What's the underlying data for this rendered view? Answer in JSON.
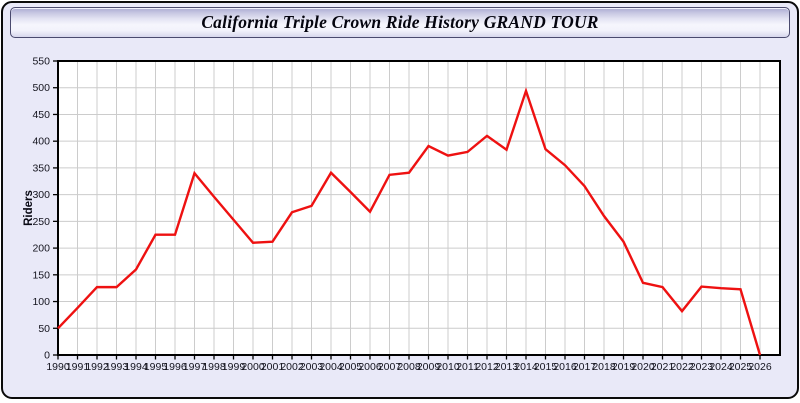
{
  "window": {
    "background_color": "#e9e9f8",
    "border_color": "#0a0a0a"
  },
  "header": {
    "title": "California Triple Crown Ride History GRAND TOUR"
  },
  "chart_data": {
    "type": "line",
    "title": "California Triple Crown Ride History GRAND TOUR",
    "xlabel": "",
    "ylabel": "Riders",
    "x": [
      1990,
      1991,
      1992,
      1993,
      1994,
      1995,
      1996,
      1997,
      1998,
      1999,
      2000,
      2001,
      2002,
      2003,
      2004,
      2005,
      2006,
      2007,
      2008,
      2009,
      2010,
      2011,
      2012,
      2013,
      2014,
      2015,
      2016,
      2017,
      2018,
      2019,
      2020,
      2021,
      2022,
      2023,
      2024,
      2025,
      2026
    ],
    "series": [
      {
        "name": "Riders",
        "color": "#ee1111",
        "values": [
          50,
          88,
          127,
          127,
          160,
          225,
          225,
          340,
          296,
          253,
          210,
          212,
          267,
          279,
          341,
          305,
          268,
          337,
          341,
          391,
          373,
          380,
          410,
          384,
          494,
          385,
          355,
          316,
          260,
          212,
          135,
          127,
          82,
          128,
          125,
          123,
          0
        ]
      }
    ],
    "ylim": [
      0,
      550
    ],
    "ytick_step": 50,
    "grid": true,
    "grid_color": "#cccccc",
    "plot_background": "#ffffff",
    "axis_color": "#000000",
    "legend_position": "none"
  }
}
